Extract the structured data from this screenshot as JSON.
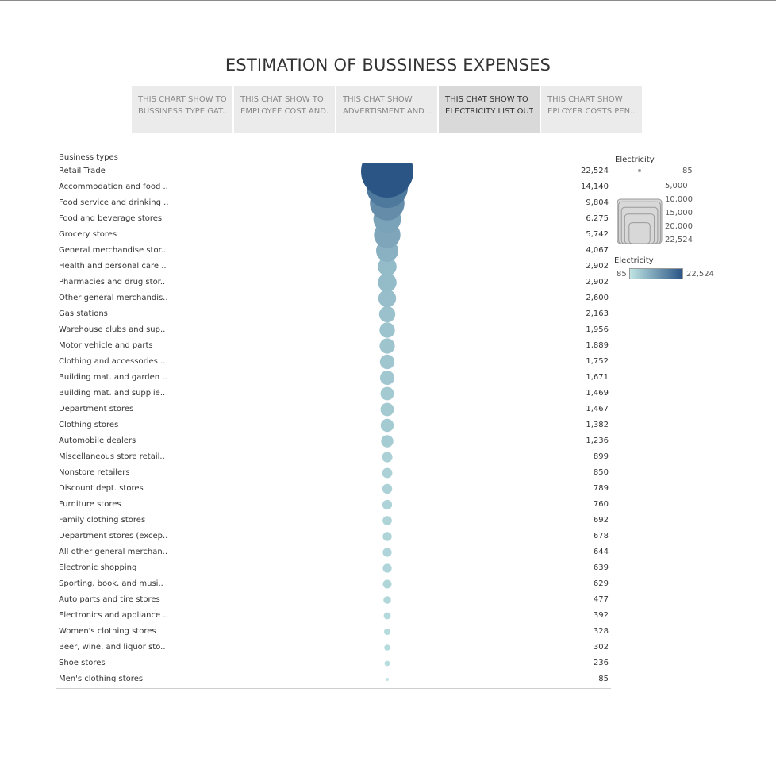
{
  "title": "ESTIMATION OF BUSSINESS EXPENSES",
  "tabs": [
    {
      "line1": "THIS CHART SHOW TO",
      "line2": "BUSSINESS TYPE GAT..",
      "active": false
    },
    {
      "line1": "THIS CHAT SHOW TO",
      "line2": "EMPLOYEE COST AND..",
      "active": false
    },
    {
      "line1": "THIS CHAT SHOW",
      "line2": "ADVERTISMENT AND ..",
      "active": false
    },
    {
      "line1": "THIS CHAT SHOW TO",
      "line2": "ELECTRICITY LIST OUT",
      "active": true
    },
    {
      "line1": "THIS CHART SHOW",
      "line2": "EPLOYER COSTS PEN..",
      "active": false
    }
  ],
  "colors": {
    "low": "#bfe4e3",
    "high": "#2a5585",
    "outline": "#aaaaaa"
  },
  "chart_data": {
    "type": "scatter",
    "row_header": "Business types",
    "measure": "Electricity",
    "categories": [
      "Retail Trade",
      "Accommodation and food ..",
      "Food service and drinking ..",
      "Food and beverage stores",
      "Grocery stores",
      "General merchandise stor..",
      "Health and personal care ..",
      "Pharmacies and drug stor..",
      "Other general merchandis..",
      "Gas stations",
      "Warehouse clubs and sup..",
      "Motor vehicle and parts",
      "Clothing and accessories ..",
      "Building mat. and garden ..",
      "Building mat. and supplie..",
      "Department stores",
      "Clothing stores",
      "Automobile dealers",
      "Miscellaneous store retail..",
      "Nonstore retailers",
      "Discount dept. stores",
      "Furniture stores",
      "Family clothing stores",
      "Department stores (excep..",
      "All other general merchan..",
      "Electronic shopping",
      "Sporting, book, and musi..",
      "Auto parts and tire stores",
      "Electronics and appliance ..",
      "Women's clothing stores",
      "Beer, wine, and liquor sto..",
      "Shoe stores",
      "Men's clothing stores"
    ],
    "values": [
      22524,
      14140,
      9804,
      6275,
      5742,
      4067,
      2902,
      2902,
      2600,
      2163,
      1956,
      1889,
      1752,
      1671,
      1469,
      1467,
      1382,
      1236,
      899,
      850,
      789,
      760,
      692,
      678,
      644,
      639,
      629,
      477,
      392,
      328,
      302,
      236,
      85
    ],
    "value_labels": [
      "22,524",
      "14,140",
      "9,804",
      "6,275",
      "5,742",
      "4,067",
      "2,902",
      "2,902",
      "2,600",
      "2,163",
      "1,956",
      "1,889",
      "1,752",
      "1,671",
      "1,469",
      "1,467",
      "1,382",
      "1,236",
      "899",
      "850",
      "789",
      "760",
      "692",
      "678",
      "644",
      "639",
      "629",
      "477",
      "392",
      "328",
      "302",
      "236",
      "85"
    ],
    "size_legend": {
      "title": "Electricity",
      "values": [
        85,
        5000,
        10000,
        15000,
        20000,
        22524
      ],
      "labels": [
        "85",
        "5,000",
        "10,000",
        "15,000",
        "20,000",
        "22,524"
      ]
    },
    "color_legend": {
      "title": "Electricity",
      "min_label": "85",
      "max_label": "22,524"
    }
  }
}
